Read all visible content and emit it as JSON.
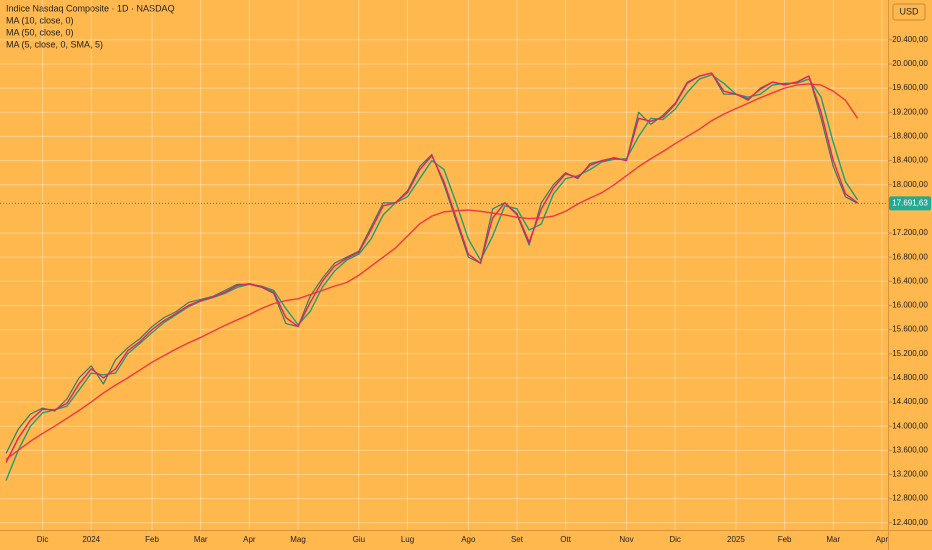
{
  "chart_data": {
    "type": "line",
    "title": "Indice Nasdaq Composite · 1D · NASDAQ",
    "currency": "USD",
    "background": "#ffb84d",
    "grid": true,
    "legend_position": "top-left",
    "categories": [
      null,
      null,
      null,
      "Dic",
      null,
      null,
      null,
      "2024",
      null,
      null,
      null,
      null,
      "Feb",
      null,
      null,
      null,
      "Mar",
      null,
      null,
      null,
      "Apr",
      null,
      null,
      null,
      "Mag",
      null,
      null,
      null,
      null,
      "Giu",
      null,
      null,
      null,
      "Lug",
      null,
      null,
      null,
      null,
      "Ago",
      null,
      null,
      null,
      "Set",
      null,
      null,
      null,
      "Ott",
      null,
      null,
      null,
      null,
      "Nov",
      null,
      null,
      null,
      "Dic",
      null,
      null,
      null,
      null,
      "2025",
      null,
      null,
      null,
      "Feb",
      null,
      null,
      null,
      "Mar",
      null,
      null,
      null,
      "Apr"
    ],
    "values": [
      13550,
      13950,
      14200,
      14300,
      14250,
      14450,
      14800,
      15000,
      14700,
      15100,
      15300,
      15450,
      15650,
      15800,
      15900,
      16050,
      16100,
      16150,
      16250,
      16350,
      16350,
      16300,
      16200,
      15700,
      15650,
      16150,
      16450,
      16700,
      16800,
      16900,
      17300,
      17700,
      17700,
      17900,
      18300,
      18500,
      18000,
      17400,
      16800,
      16700,
      17600,
      17700,
      17500,
      17000,
      17700,
      18000,
      18200,
      18100,
      18350,
      18400,
      18450,
      18400,
      19200,
      19000,
      19150,
      19350,
      19700,
      19800,
      19850,
      19500,
      19500,
      19400,
      19600,
      19700,
      19650,
      19700,
      19800,
      19100,
      18300,
      17800,
      17691.63,
      null,
      null
    ],
    "color": "#2f7d6a",
    "last_label": "17.691,63",
    "series": [
      {
        "name": "MA (10, close, 0)",
        "color": "#1e9e78",
        "values": [
          13100,
          13600,
          14000,
          14220,
          14270,
          14330,
          14600,
          14880,
          14850,
          14880,
          15200,
          15370,
          15550,
          15720,
          15850,
          15980,
          16070,
          16130,
          16200,
          16300,
          16350,
          16320,
          16250,
          15950,
          15680,
          15900,
          16300,
          16570,
          16750,
          16850,
          17100,
          17500,
          17700,
          17800,
          18100,
          18400,
          18250,
          17700,
          17100,
          16750,
          17150,
          17650,
          17600,
          17250,
          17350,
          17850,
          18100,
          18150,
          18250,
          18380,
          18420,
          18430,
          18800,
          19100,
          19080,
          19250,
          19530,
          19750,
          19820,
          19680,
          19500,
          19450,
          19500,
          19650,
          19680,
          19680,
          19750,
          19450,
          18700,
          18050,
          17750,
          null,
          null
        ]
      },
      {
        "name": "MA (50, close, 0)",
        "color": "#f23645",
        "values": [
          13450,
          13600,
          13750,
          13880,
          14000,
          14130,
          14260,
          14400,
          14550,
          14680,
          14800,
          14930,
          15060,
          15170,
          15280,
          15380,
          15470,
          15570,
          15670,
          15760,
          15850,
          15950,
          16030,
          16080,
          16110,
          16180,
          16250,
          16320,
          16380,
          16500,
          16650,
          16800,
          16950,
          17150,
          17350,
          17480,
          17550,
          17570,
          17580,
          17560,
          17530,
          17500,
          17460,
          17440,
          17450,
          17480,
          17560,
          17680,
          17780,
          17870,
          18000,
          18150,
          18300,
          18430,
          18550,
          18680,
          18800,
          18920,
          19060,
          19170,
          19260,
          19350,
          19440,
          19520,
          19600,
          19650,
          19670,
          19650,
          19550,
          19400,
          19100,
          null,
          null
        ]
      },
      {
        "name": "MA (5, close, 0, SMA, 5)",
        "color": "#e91e63",
        "values": [
          13400,
          13800,
          14100,
          14280,
          14270,
          14380,
          14700,
          14950,
          14800,
          14950,
          15250,
          15400,
          15600,
          15750,
          15870,
          16000,
          16080,
          16140,
          16220,
          16330,
          16360,
          16310,
          16220,
          15800,
          15650,
          16050,
          16400,
          16650,
          16780,
          16880,
          17250,
          17650,
          17700,
          17870,
          18250,
          18480,
          18050,
          17450,
          16850,
          16700,
          17450,
          17700,
          17520,
          17050,
          17600,
          17950,
          18180,
          18120,
          18320,
          18400,
          18440,
          18400,
          19100,
          19050,
          19120,
          19330,
          19680,
          19800,
          19850,
          19550,
          19500,
          19420,
          19580,
          19700,
          19660,
          19700,
          19800,
          19200,
          18400,
          17850,
          17700,
          null,
          null
        ]
      }
    ],
    "ylim": [
      12280,
      21060
    ],
    "yticks": [
      {
        "value": 12400,
        "label": "12.400,00"
      },
      {
        "value": 12800,
        "label": "12.800,00"
      },
      {
        "value": 13200,
        "label": "13.200,00"
      },
      {
        "value": 13600,
        "label": "13.600,00"
      },
      {
        "value": 14000,
        "label": "14.000,00"
      },
      {
        "value": 14400,
        "label": "14.400,00"
      },
      {
        "value": 14800,
        "label": "14.800,00"
      },
      {
        "value": 15200,
        "label": "15.200,00"
      },
      {
        "value": 15600,
        "label": "15.600,00"
      },
      {
        "value": 16000,
        "label": "16.000,00"
      },
      {
        "value": 16400,
        "label": "16.400,00"
      },
      {
        "value": 16800,
        "label": "16.800,00"
      },
      {
        "value": 17200,
        "label": "17.200,00"
      },
      {
        "value": 18000,
        "label": "18.000,00"
      },
      {
        "value": 18400,
        "label": "18.400,00"
      },
      {
        "value": 18800,
        "label": "18.800,00"
      },
      {
        "value": 19200,
        "label": "19.200,00"
      },
      {
        "value": 19600,
        "label": "19.600,00"
      },
      {
        "value": 20000,
        "label": "20.000,00"
      },
      {
        "value": 20400,
        "label": "20.400,00"
      }
    ]
  }
}
